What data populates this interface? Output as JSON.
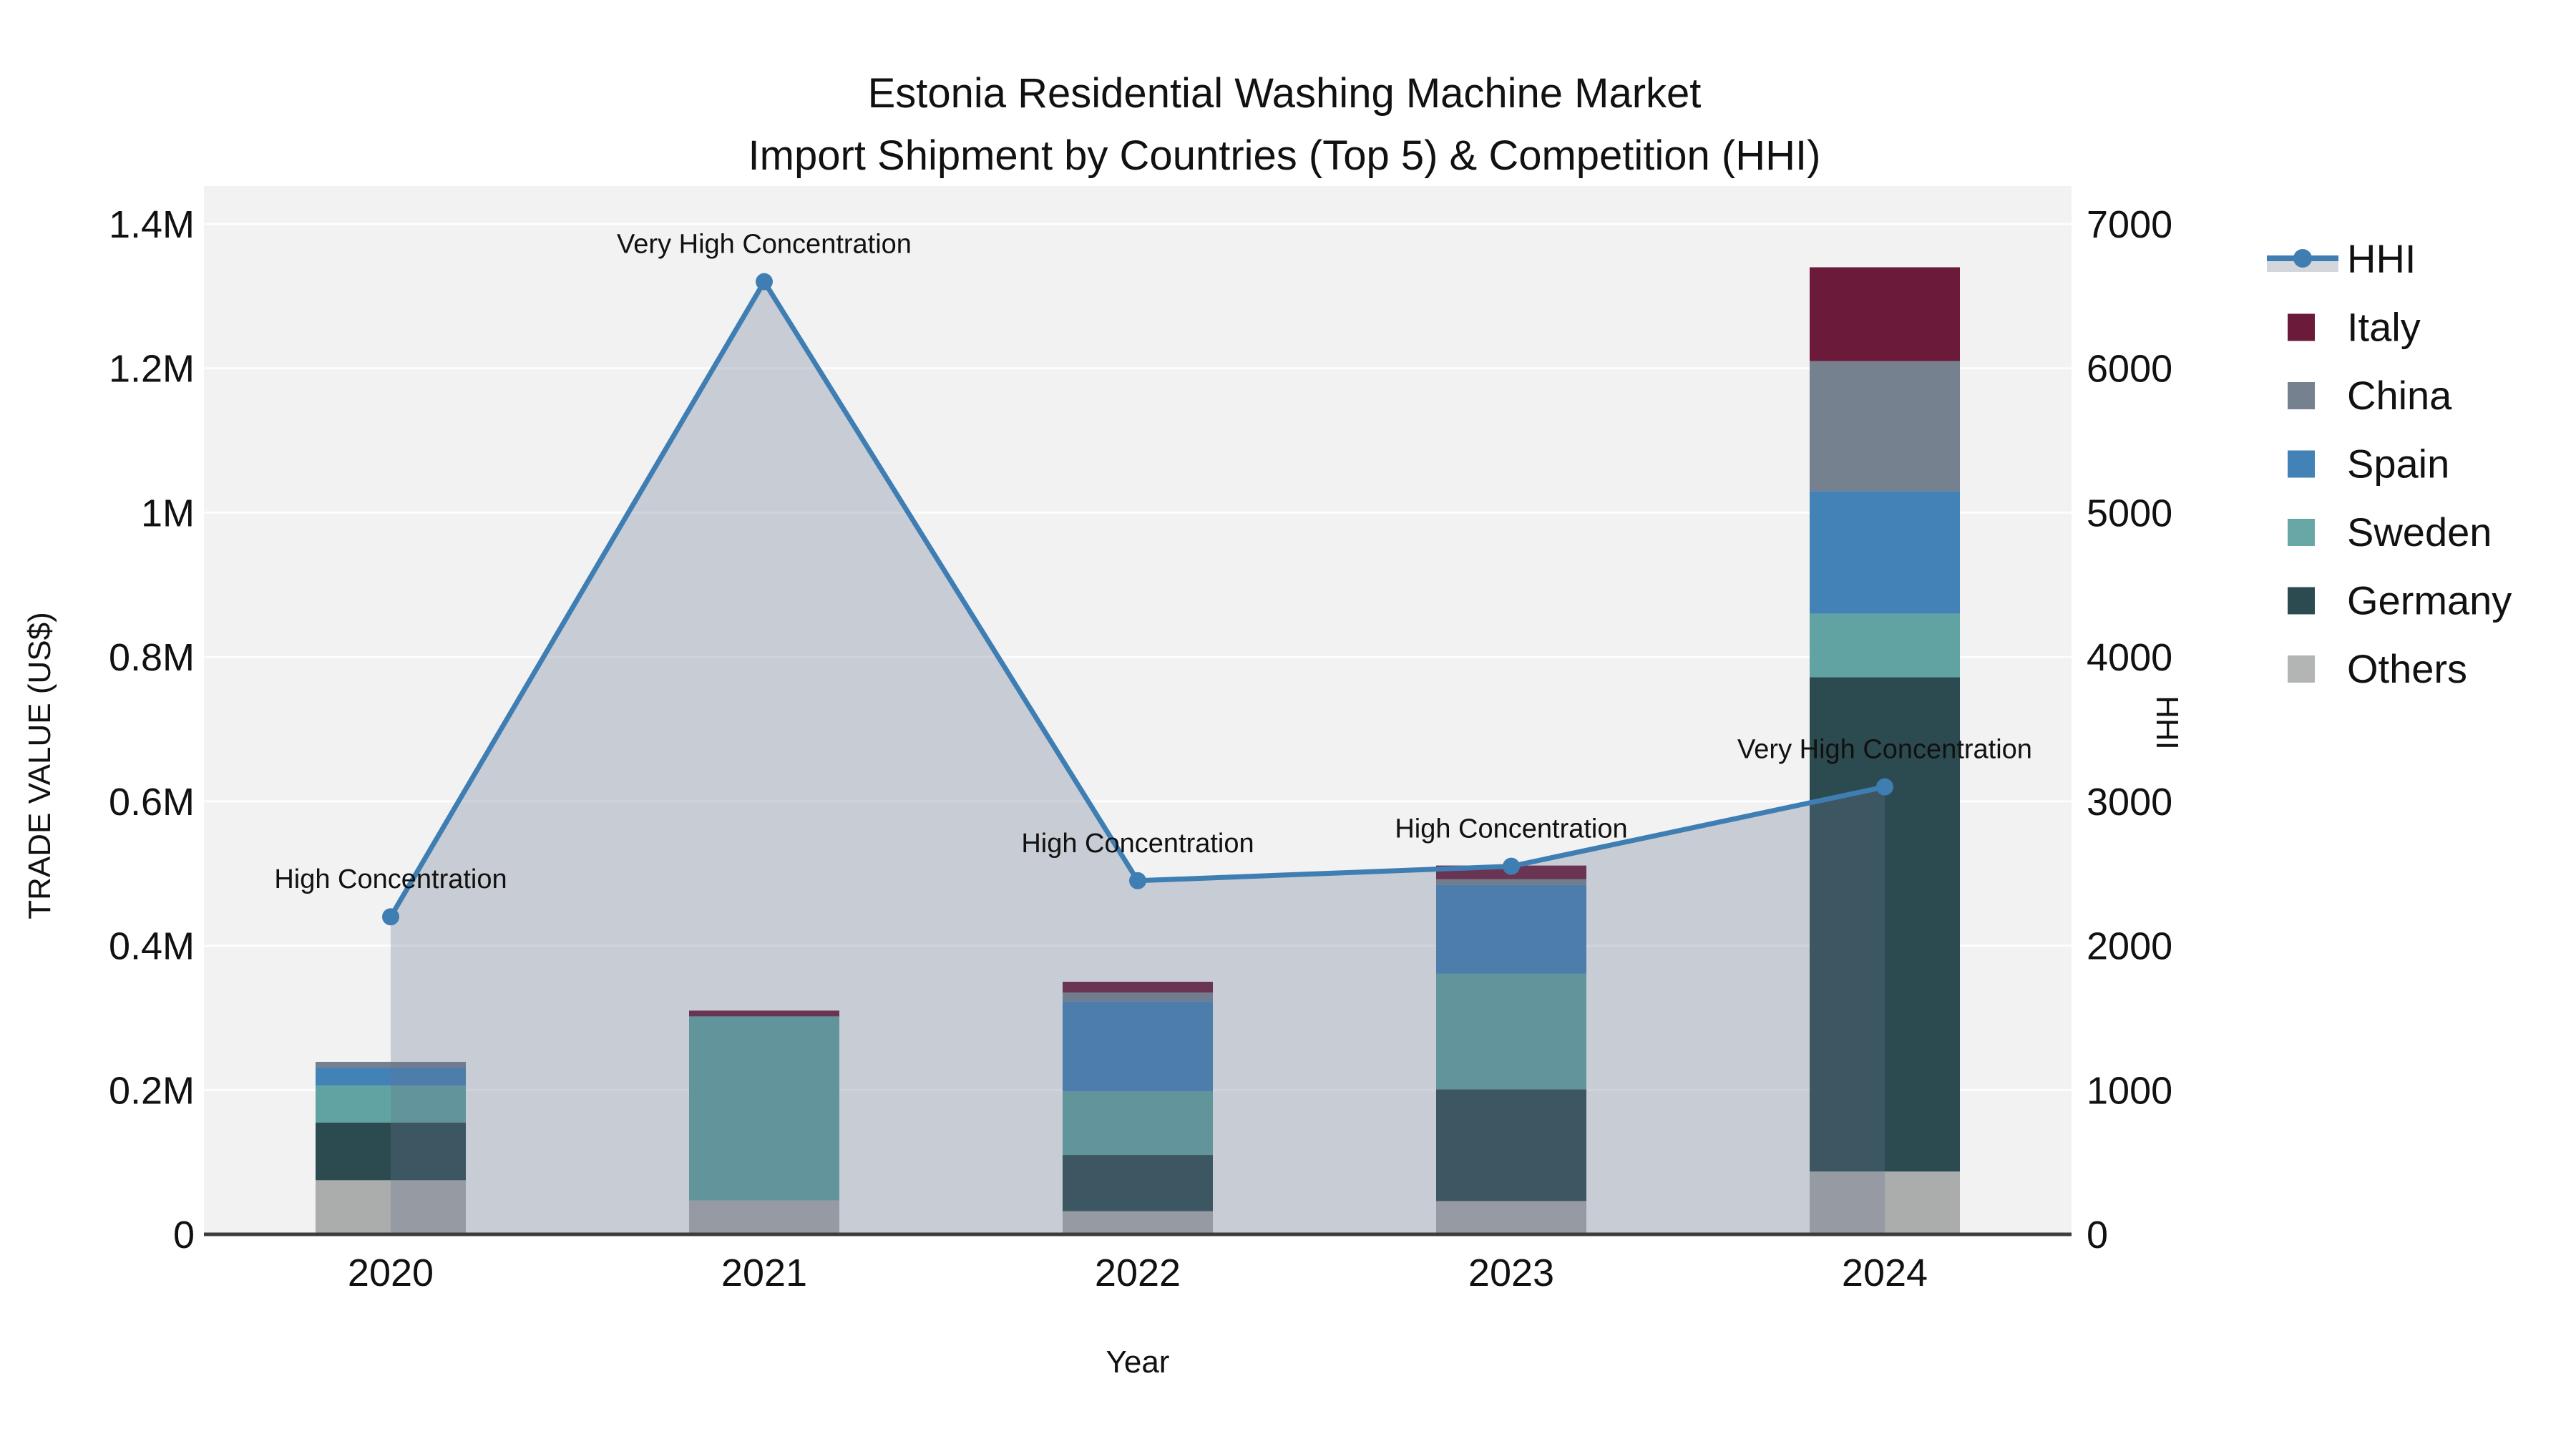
{
  "title": {
    "line1": "Estonia Residential Washing Machine Market",
    "line2": "Import Shipment by Countries (Top 5) & Competition (HHI)"
  },
  "axes": {
    "left": {
      "label": "TRADE VALUE (US$)",
      "ticks": [
        "0",
        "0.2M",
        "0.4M",
        "0.6M",
        "0.8M",
        "1M",
        "1.2M",
        "1.4M"
      ]
    },
    "right": {
      "label": "HHI",
      "ticks": [
        "0",
        "1000",
        "2000",
        "3000",
        "4000",
        "5000",
        "6000",
        "7000"
      ]
    },
    "x": {
      "label": "Year",
      "ticks": [
        "2020",
        "2021",
        "2022",
        "2023",
        "2024"
      ]
    }
  },
  "legend": {
    "items": [
      {
        "label": "HHI",
        "type": "line",
        "color": "#3f7eb3",
        "band": "#d3d6da"
      },
      {
        "label": "Italy",
        "type": "swatch",
        "color": "#6b1a3a"
      },
      {
        "label": "China",
        "type": "swatch",
        "color": "#76818f"
      },
      {
        "label": "Spain",
        "type": "swatch",
        "color": "#4382b6"
      },
      {
        "label": "Sweden",
        "type": "swatch",
        "color": "#67a8a6"
      },
      {
        "label": "Germany",
        "type": "swatch",
        "color": "#2c4b50"
      },
      {
        "label": "Others",
        "type": "swatch",
        "color": "#b3b5b4"
      }
    ]
  },
  "chart_data": {
    "type": "bar+line dual-axis (stacked bars left axis, HHI line+area right axis)",
    "title": "Estonia Residential Washing Machine Market — Import Shipment by Countries (Top 5) & Competition (HHI)",
    "categories": [
      "2020",
      "2021",
      "2022",
      "2023",
      "2024"
    ],
    "xlabel": "Year",
    "ylabel_left": "TRADE VALUE (US$)",
    "ylabel_right": "HHI",
    "ylim_left": [
      0,
      1452000
    ],
    "ylim_right": [
      0,
      7260
    ],
    "grid": true,
    "legend_position": "right",
    "bar_unit": "US$",
    "stack_order_bottom_to_top": [
      "Others",
      "Germany",
      "Sweden",
      "Spain",
      "China",
      "Italy"
    ],
    "series": [
      {
        "name": "Others",
        "color": "#abadac",
        "values": [
          75000,
          47000,
          32000,
          46000,
          87000
        ]
      },
      {
        "name": "Germany",
        "color": "#2c4b50",
        "values": [
          80000,
          0,
          78000,
          155000,
          685000
        ]
      },
      {
        "name": "Sweden",
        "color": "#61a3a2",
        "values": [
          51000,
          255000,
          88000,
          160000,
          88000
        ]
      },
      {
        "name": "Spain",
        "color": "#4382b6",
        "values": [
          25000,
          0,
          125000,
          123000,
          170000
        ]
      },
      {
        "name": "China",
        "color": "#76818f",
        "values": [
          8000,
          0,
          12000,
          8000,
          180000
        ]
      },
      {
        "name": "Italy",
        "color": "#6b1a3a",
        "values": [
          0,
          8000,
          15000,
          19000,
          130000
        ]
      }
    ],
    "bar_totals": [
      239000,
      310000,
      350000,
      511000,
      1340000
    ],
    "line_series": {
      "name": "HHI",
      "axis": "right",
      "color": "#3f7eb3",
      "area_fill": "#667390",
      "area_opacity": 0.3,
      "values": [
        2200,
        6600,
        2450,
        2550,
        3100
      ]
    },
    "annotations": [
      {
        "year": "2020",
        "text": "High Concentration"
      },
      {
        "year": "2021",
        "text": "Very High Concentration"
      },
      {
        "year": "2022",
        "text": "High Concentration"
      },
      {
        "year": "2023",
        "text": "High Concentration"
      },
      {
        "year": "2024",
        "text": "Very High Concentration"
      }
    ]
  },
  "colors": {
    "plot_background": "#f2f2f3",
    "figure_background": "#ffffff",
    "gridline": "#ffffff",
    "axis_line": "#3c3c3c",
    "text": "#111111"
  }
}
